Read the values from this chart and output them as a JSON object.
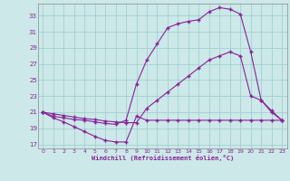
{
  "xlabel": "Windchill (Refroidissement éolien,°C)",
  "xlim": [
    -0.5,
    23.5
  ],
  "ylim": [
    16.5,
    34.5
  ],
  "yticks": [
    17,
    19,
    21,
    23,
    25,
    27,
    29,
    31,
    33
  ],
  "xticks": [
    0,
    1,
    2,
    3,
    4,
    5,
    6,
    7,
    8,
    9,
    10,
    11,
    12,
    13,
    14,
    15,
    16,
    17,
    18,
    19,
    20,
    21,
    22,
    23
  ],
  "bg_color": "#cce8e8",
  "line_color": "#882299",
  "grid_color": "#99cccc",
  "s1_x": [
    0,
    1,
    2,
    3,
    4,
    5,
    6,
    7,
    8,
    9,
    10,
    11,
    12,
    13,
    14,
    15,
    16,
    17,
    18,
    19,
    20,
    21,
    22,
    23
  ],
  "s1_y": [
    21.0,
    20.3,
    19.8,
    19.2,
    18.6,
    18.0,
    17.5,
    17.3,
    17.3,
    20.5,
    20.0,
    20.0,
    20.0,
    20.0,
    20.0,
    20.0,
    20.0,
    20.0,
    20.0,
    20.0,
    20.0,
    20.0,
    20.0,
    20.0
  ],
  "s2_x": [
    0,
    1,
    2,
    3,
    4,
    5,
    6,
    7,
    8,
    9,
    10,
    11,
    12,
    13,
    14,
    15,
    16,
    17,
    18,
    19,
    20,
    21,
    22,
    23
  ],
  "s2_y": [
    21.0,
    20.5,
    20.3,
    20.1,
    20.0,
    19.8,
    19.6,
    19.5,
    20.0,
    24.5,
    27.5,
    29.5,
    31.5,
    32.0,
    32.3,
    32.5,
    33.5,
    34.0,
    33.8,
    33.2,
    28.5,
    22.5,
    21.0,
    20.0
  ],
  "s3_x": [
    0,
    1,
    2,
    3,
    4,
    5,
    6,
    7,
    8,
    9,
    10,
    11,
    12,
    13,
    14,
    15,
    16,
    17,
    18,
    19,
    20,
    21,
    22,
    23
  ],
  "s3_y": [
    21.0,
    20.8,
    20.6,
    20.4,
    20.2,
    20.1,
    19.9,
    19.8,
    19.7,
    19.7,
    21.5,
    22.5,
    23.5,
    24.5,
    25.5,
    26.5,
    27.5,
    28.0,
    28.5,
    28.0,
    23.0,
    22.5,
    21.2,
    20.0
  ]
}
